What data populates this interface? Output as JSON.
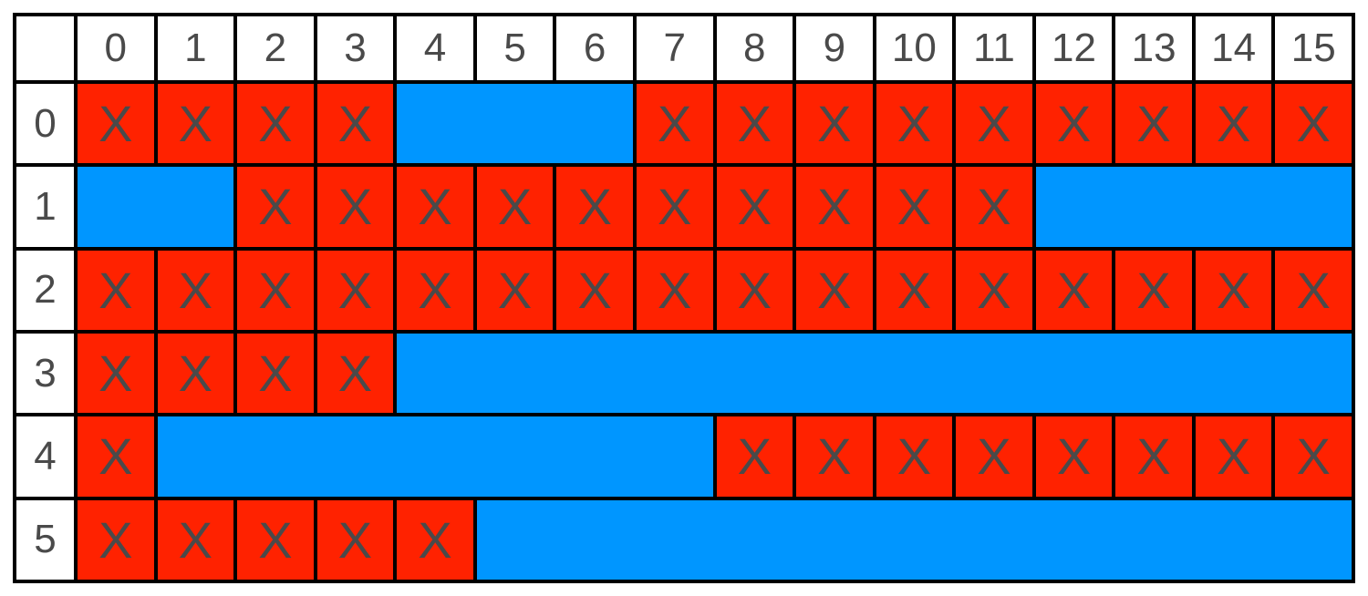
{
  "colors": {
    "used": "#FF2200",
    "free": "#0096FF",
    "header": "#FFFFFF",
    "text": "#4A4A4A",
    "border": "#000000"
  },
  "column_headers": [
    "0",
    "1",
    "2",
    "3",
    "4",
    "5",
    "6",
    "7",
    "8",
    "9",
    "10",
    "11",
    "12",
    "13",
    "14",
    "15"
  ],
  "rows": [
    {
      "label": "0",
      "segments": [
        {
          "type": "used",
          "start": 0,
          "end": 3
        },
        {
          "type": "free",
          "start": 4,
          "end": 6
        },
        {
          "type": "used",
          "start": 7,
          "end": 15
        }
      ]
    },
    {
      "label": "1",
      "segments": [
        {
          "type": "free",
          "start": 0,
          "end": 1
        },
        {
          "type": "used",
          "start": 2,
          "end": 11
        },
        {
          "type": "free",
          "start": 12,
          "end": 15
        }
      ]
    },
    {
      "label": "2",
      "segments": [
        {
          "type": "used",
          "start": 0,
          "end": 15
        }
      ]
    },
    {
      "label": "3",
      "segments": [
        {
          "type": "used",
          "start": 0,
          "end": 3
        },
        {
          "type": "free",
          "start": 4,
          "end": 15
        }
      ]
    },
    {
      "label": "4",
      "segments": [
        {
          "type": "used",
          "start": 0,
          "end": 0
        },
        {
          "type": "free",
          "start": 1,
          "end": 7
        },
        {
          "type": "used",
          "start": 8,
          "end": 15
        }
      ]
    },
    {
      "label": "5",
      "segments": [
        {
          "type": "used",
          "start": 0,
          "end": 4
        },
        {
          "type": "free",
          "start": 5,
          "end": 15
        }
      ]
    }
  ],
  "used_mark": "X"
}
